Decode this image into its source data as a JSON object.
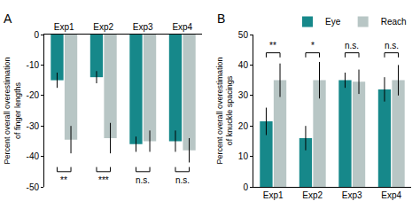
{
  "chart_data": [
    {
      "type": "bar",
      "title": "A",
      "y_label": "Percent overall overestimation\nof finger lengths",
      "categories": [
        "Exp1",
        "Exp2",
        "Exp3",
        "Exp4"
      ],
      "series": [
        {
          "name": "Eye",
          "color": "#16888a",
          "values": [
            -15,
            -14,
            -36,
            -35
          ],
          "errors": [
            2.5,
            2,
            2.5,
            3.5
          ]
        },
        {
          "name": "Reach",
          "color": "#b8c6c5",
          "values": [
            -34.5,
            -34,
            -35,
            -38
          ],
          "errors": [
            4.5,
            5,
            3.5,
            4
          ]
        }
      ],
      "ylim": [
        -50,
        0
      ],
      "yticks": [
        -50,
        -40,
        -30,
        -20,
        -10,
        0
      ],
      "grid": false,
      "annotations": [
        {
          "x": "Exp1",
          "text": "**"
        },
        {
          "x": "Exp2",
          "text": "***"
        },
        {
          "x": "Exp3",
          "text": "n.s."
        },
        {
          "x": "Exp4",
          "text": "n.s."
        }
      ]
    },
    {
      "type": "bar",
      "title": "B",
      "y_label": "Percent overall overestimation\nof knuckle spacings",
      "categories": [
        "Exp1",
        "Exp2",
        "Exp3",
        "Exp4"
      ],
      "series": [
        {
          "name": "Eye",
          "color": "#16888a",
          "values": [
            21.5,
            16,
            35,
            32
          ],
          "errors": [
            4.5,
            4,
            2.5,
            4
          ]
        },
        {
          "name": "Reach",
          "color": "#b8c6c5",
          "values": [
            35,
            35,
            34.5,
            35
          ],
          "errors": [
            5.5,
            6,
            4,
            5
          ]
        }
      ],
      "ylim": [
        0,
        50
      ],
      "yticks": [
        0,
        10,
        20,
        30,
        40,
        50
      ],
      "grid": false,
      "legend": "top right",
      "annotations": [
        {
          "x": "Exp1",
          "text": "**"
        },
        {
          "x": "Exp2",
          "text": "*"
        },
        {
          "x": "Exp3",
          "text": "n.s."
        },
        {
          "x": "Exp4",
          "text": "n.s."
        }
      ]
    }
  ]
}
